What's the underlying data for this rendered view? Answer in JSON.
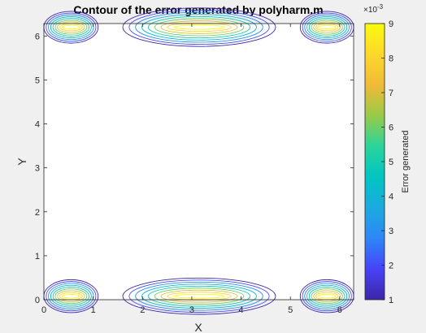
{
  "chart_data": {
    "type": "contour",
    "title": "Contour of the error generated by polyharm.m",
    "xlabel": "X",
    "ylabel": "Y",
    "xlim": [
      0,
      6.2832
    ],
    "ylim": [
      0,
      6.2832
    ],
    "xticks": [
      0,
      1,
      2,
      3,
      4,
      5,
      6
    ],
    "yticks": [
      0,
      1,
      2,
      3,
      4,
      5,
      6
    ],
    "grid": false,
    "colorbar": {
      "label": "Error generated",
      "exponent_label": "×10",
      "exponent": "-3",
      "ticks": [
        1,
        2,
        3,
        4,
        5,
        6,
        7,
        8,
        9
      ],
      "range": [
        1,
        9
      ],
      "colormap": [
        "#3e26a8",
        "#4743f8",
        "#2e87f7",
        "#1caadf",
        "#00c5c2",
        "#2ad49b",
        "#98ca48",
        "#f0ba37",
        "#fed82a",
        "#f9fb0e"
      ]
    },
    "contour_levels": [
      1,
      2,
      3,
      4,
      5,
      6,
      7,
      8,
      9
    ],
    "clusters": [
      {
        "region": "bottom-left",
        "x_range": [
          0,
          1.1
        ],
        "y_range": [
          0,
          0.5
        ]
      },
      {
        "region": "bottom-center",
        "x_range": [
          1.6,
          4.7
        ],
        "y_range": [
          0,
          0.55
        ]
      },
      {
        "region": "bottom-right",
        "x_range": [
          5.2,
          6.2832
        ],
        "y_range": [
          0,
          0.5
        ]
      },
      {
        "region": "top-left",
        "x_range": [
          0,
          1.1
        ],
        "y_range": [
          5.8,
          6.2832
        ]
      },
      {
        "region": "top-center",
        "x_range": [
          1.6,
          4.7
        ],
        "y_range": [
          5.7,
          6.2832
        ]
      },
      {
        "region": "top-right",
        "x_range": [
          5.2,
          6.2832
        ],
        "y_range": [
          5.8,
          6.2832
        ]
      }
    ]
  }
}
